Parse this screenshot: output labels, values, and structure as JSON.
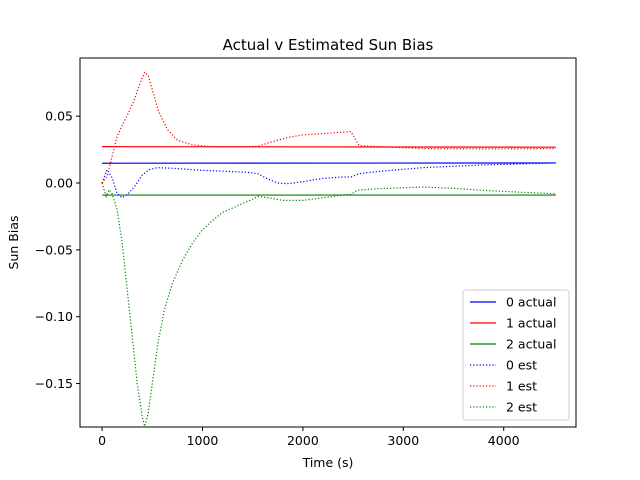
{
  "chart_data": {
    "type": "line",
    "title": "Actual v Estimated Sun Bias",
    "xlabel": "Time (s)",
    "ylabel": "Sun Bias",
    "xlim": [
      -220,
      4720
    ],
    "ylim": [
      -0.1825,
      0.0935
    ],
    "x_ticks": [
      0,
      1000,
      2000,
      3000,
      4000
    ],
    "x_tick_labels": [
      "0",
      "1000",
      "2000",
      "3000",
      "4000"
    ],
    "y_ticks": [
      0.05,
      0.0,
      -0.05,
      -0.1,
      -0.15
    ],
    "y_tick_labels": [
      "0.05",
      "0.00",
      "−0.05",
      "−0.10",
      "−0.15"
    ],
    "grid": false,
    "legend_position": "lower right",
    "series": [
      {
        "name": "0 actual",
        "color": "#0000ff",
        "style": "solid",
        "points": [
          [
            0,
            0.0148
          ],
          [
            4520,
            0.015
          ]
        ]
      },
      {
        "name": "1 actual",
        "color": "#ff0000",
        "style": "solid",
        "points": [
          [
            0,
            0.0272
          ],
          [
            4520,
            0.0268
          ]
        ]
      },
      {
        "name": "2 actual",
        "color": "#008000",
        "style": "solid",
        "points": [
          [
            0,
            -0.009
          ],
          [
            4520,
            -0.009
          ]
        ]
      },
      {
        "name": "0 est",
        "color": "#0000ff",
        "style": "dotted",
        "points": [
          [
            0,
            0.0
          ],
          [
            50,
            0.01
          ],
          [
            100,
            0.004
          ],
          [
            150,
            -0.008
          ],
          [
            200,
            -0.011
          ],
          [
            260,
            -0.008
          ],
          [
            330,
            -0.002
          ],
          [
            400,
            0.006
          ],
          [
            470,
            0.01
          ],
          [
            550,
            0.0115
          ],
          [
            700,
            0.011
          ],
          [
            1000,
            0.0095
          ],
          [
            1300,
            0.0085
          ],
          [
            1450,
            0.008
          ],
          [
            1550,
            0.007
          ],
          [
            1650,
            0.003
          ],
          [
            1750,
            0.0
          ],
          [
            1850,
            -0.0005
          ],
          [
            2000,
            0.001
          ],
          [
            2200,
            0.0035
          ],
          [
            2400,
            0.0045
          ],
          [
            2480,
            0.0045
          ],
          [
            2560,
            0.007
          ],
          [
            2800,
            0.009
          ],
          [
            3200,
            0.0115
          ],
          [
            3800,
            0.0135
          ],
          [
            4520,
            0.015
          ]
        ]
      },
      {
        "name": "1 est",
        "color": "#ff0000",
        "style": "dotted",
        "points": [
          [
            0,
            0.0
          ],
          [
            50,
            0.005
          ],
          [
            100,
            0.02
          ],
          [
            150,
            0.035
          ],
          [
            200,
            0.043
          ],
          [
            260,
            0.052
          ],
          [
            320,
            0.062
          ],
          [
            380,
            0.075
          ],
          [
            425,
            0.083
          ],
          [
            460,
            0.08
          ],
          [
            500,
            0.07
          ],
          [
            560,
            0.054
          ],
          [
            650,
            0.04
          ],
          [
            750,
            0.032
          ],
          [
            900,
            0.0285
          ],
          [
            1100,
            0.0272
          ],
          [
            1400,
            0.027
          ],
          [
            1550,
            0.0275
          ],
          [
            1700,
            0.031
          ],
          [
            1850,
            0.034
          ],
          [
            2000,
            0.036
          ],
          [
            2200,
            0.037
          ],
          [
            2400,
            0.038
          ],
          [
            2480,
            0.0385
          ],
          [
            2520,
            0.033
          ],
          [
            2560,
            0.028
          ],
          [
            2800,
            0.027
          ],
          [
            3200,
            0.0258
          ],
          [
            3800,
            0.0255
          ],
          [
            4520,
            0.0258
          ]
        ]
      },
      {
        "name": "2 est",
        "color": "#008000",
        "style": "dotted",
        "points": [
          [
            0,
            0.0
          ],
          [
            40,
            -0.01
          ],
          [
            70,
            -0.005
          ],
          [
            100,
            -0.008
          ],
          [
            150,
            -0.02
          ],
          [
            200,
            -0.045
          ],
          [
            250,
            -0.08
          ],
          [
            300,
            -0.115
          ],
          [
            350,
            -0.15
          ],
          [
            400,
            -0.175
          ],
          [
            425,
            -0.182
          ],
          [
            460,
            -0.172
          ],
          [
            500,
            -0.15
          ],
          [
            560,
            -0.118
          ],
          [
            620,
            -0.095
          ],
          [
            700,
            -0.075
          ],
          [
            800,
            -0.058
          ],
          [
            900,
            -0.045
          ],
          [
            1000,
            -0.035
          ],
          [
            1100,
            -0.028
          ],
          [
            1200,
            -0.022
          ],
          [
            1350,
            -0.017
          ],
          [
            1500,
            -0.012
          ],
          [
            1550,
            -0.01
          ],
          [
            1650,
            -0.011
          ],
          [
            1800,
            -0.013
          ],
          [
            2000,
            -0.013
          ],
          [
            2200,
            -0.011
          ],
          [
            2400,
            -0.009
          ],
          [
            2480,
            -0.0085
          ],
          [
            2540,
            -0.0055
          ],
          [
            2700,
            -0.0045
          ],
          [
            3000,
            -0.0035
          ],
          [
            3200,
            -0.003
          ],
          [
            3500,
            -0.004
          ],
          [
            3800,
            -0.0055
          ],
          [
            4200,
            -0.007
          ],
          [
            4520,
            -0.008
          ]
        ]
      }
    ]
  }
}
